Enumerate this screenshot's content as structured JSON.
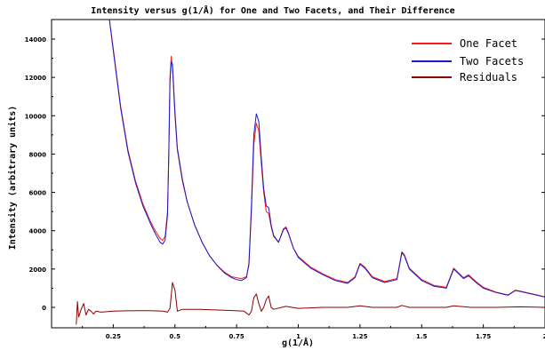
{
  "chart_data": {
    "type": "line",
    "title": "Intensity versus g(1/Å) for One and Two Facets, and Their Difference",
    "xlabel": "g(1/Å)",
    "ylabel": "Intensity (arbitrary units)",
    "xlim": [
      0,
      2
    ],
    "ylim": [
      -1000,
      15000
    ],
    "x_ticks": [
      0.25,
      0.5,
      0.75,
      1,
      1.25,
      1.5,
      1.75,
      2
    ],
    "x_tick_labels": [
      "0.25",
      "0.5",
      "0.75",
      "1",
      "1.25",
      "1.5",
      "1.75",
      "2"
    ],
    "y_ticks": [
      0,
      2000,
      4000,
      6000,
      8000,
      10000,
      12000,
      14000
    ],
    "y_tick_labels": [
      "0",
      "2000",
      "4000",
      "6000",
      "8000",
      "10000",
      "12000",
      "14000"
    ],
    "grid": false,
    "legend_position": "top-right",
    "series": [
      {
        "name": "One Facet",
        "color": "#ff1a1a",
        "points": [
          [
            0.23,
            15500
          ],
          [
            0.25,
            13500
          ],
          [
            0.28,
            10500
          ],
          [
            0.31,
            8200
          ],
          [
            0.34,
            6600
          ],
          [
            0.37,
            5400
          ],
          [
            0.4,
            4500
          ],
          [
            0.42,
            4000
          ],
          [
            0.44,
            3600
          ],
          [
            0.45,
            3500
          ],
          [
            0.46,
            3700
          ],
          [
            0.47,
            5000
          ],
          [
            0.475,
            8000
          ],
          [
            0.48,
            12000
          ],
          [
            0.485,
            13100
          ],
          [
            0.49,
            12500
          ],
          [
            0.5,
            10000
          ],
          [
            0.51,
            8200
          ],
          [
            0.53,
            6600
          ],
          [
            0.55,
            5500
          ],
          [
            0.58,
            4300
          ],
          [
            0.61,
            3400
          ],
          [
            0.64,
            2700
          ],
          [
            0.67,
            2200
          ],
          [
            0.7,
            1850
          ],
          [
            0.73,
            1600
          ],
          [
            0.75,
            1550
          ],
          [
            0.77,
            1500
          ],
          [
            0.79,
            1600
          ],
          [
            0.8,
            2200
          ],
          [
            0.81,
            5000
          ],
          [
            0.82,
            8500
          ],
          [
            0.83,
            9600
          ],
          [
            0.84,
            9200
          ],
          [
            0.85,
            7500
          ],
          [
            0.86,
            6000
          ],
          [
            0.87,
            5000
          ],
          [
            0.88,
            4900
          ],
          [
            0.89,
            4200
          ],
          [
            0.9,
            3700
          ],
          [
            0.92,
            3400
          ],
          [
            0.94,
            4100
          ],
          [
            0.95,
            4200
          ],
          [
            0.96,
            3900
          ],
          [
            0.98,
            3100
          ],
          [
            1.0,
            2650
          ],
          [
            1.05,
            2100
          ],
          [
            1.1,
            1750
          ],
          [
            1.15,
            1450
          ],
          [
            1.2,
            1300
          ],
          [
            1.23,
            1600
          ],
          [
            1.25,
            2300
          ],
          [
            1.27,
            2100
          ],
          [
            1.3,
            1600
          ],
          [
            1.35,
            1350
          ],
          [
            1.4,
            1500
          ],
          [
            1.42,
            2900
          ],
          [
            1.43,
            2750
          ],
          [
            1.45,
            2050
          ],
          [
            1.5,
            1450
          ],
          [
            1.55,
            1150
          ],
          [
            1.6,
            1050
          ],
          [
            1.63,
            2050
          ],
          [
            1.65,
            1800
          ],
          [
            1.67,
            1550
          ],
          [
            1.69,
            1700
          ],
          [
            1.72,
            1350
          ],
          [
            1.75,
            1050
          ],
          [
            1.8,
            800
          ],
          [
            1.85,
            650
          ],
          [
            1.88,
            900
          ],
          [
            1.9,
            850
          ],
          [
            1.95,
            700
          ],
          [
            2.0,
            550
          ]
        ]
      },
      {
        "name": "Two Facets",
        "color": "#1a1acc",
        "points": [
          [
            0.23,
            15500
          ],
          [
            0.25,
            13400
          ],
          [
            0.28,
            10400
          ],
          [
            0.31,
            8100
          ],
          [
            0.34,
            6500
          ],
          [
            0.37,
            5300
          ],
          [
            0.4,
            4400
          ],
          [
            0.42,
            3850
          ],
          [
            0.44,
            3400
          ],
          [
            0.45,
            3300
          ],
          [
            0.46,
            3500
          ],
          [
            0.47,
            4800
          ],
          [
            0.475,
            7800
          ],
          [
            0.48,
            11800
          ],
          [
            0.485,
            12800
          ],
          [
            0.49,
            12700
          ],
          [
            0.5,
            10200
          ],
          [
            0.51,
            8300
          ],
          [
            0.53,
            6700
          ],
          [
            0.55,
            5500
          ],
          [
            0.58,
            4300
          ],
          [
            0.61,
            3400
          ],
          [
            0.64,
            2700
          ],
          [
            0.67,
            2200
          ],
          [
            0.7,
            1800
          ],
          [
            0.73,
            1550
          ],
          [
            0.75,
            1450
          ],
          [
            0.77,
            1400
          ],
          [
            0.79,
            1550
          ],
          [
            0.8,
            2300
          ],
          [
            0.81,
            5300
          ],
          [
            0.82,
            9000
          ],
          [
            0.83,
            10100
          ],
          [
            0.84,
            9700
          ],
          [
            0.85,
            7800
          ],
          [
            0.86,
            6200
          ],
          [
            0.87,
            5300
          ],
          [
            0.88,
            5200
          ],
          [
            0.89,
            4300
          ],
          [
            0.9,
            3750
          ],
          [
            0.92,
            3400
          ],
          [
            0.94,
            4050
          ],
          [
            0.95,
            4150
          ],
          [
            0.96,
            3850
          ],
          [
            0.98,
            3100
          ],
          [
            1.0,
            2600
          ],
          [
            1.05,
            2050
          ],
          [
            1.1,
            1700
          ],
          [
            1.15,
            1400
          ],
          [
            1.2,
            1250
          ],
          [
            1.23,
            1550
          ],
          [
            1.25,
            2250
          ],
          [
            1.27,
            2050
          ],
          [
            1.3,
            1550
          ],
          [
            1.35,
            1300
          ],
          [
            1.4,
            1450
          ],
          [
            1.42,
            2850
          ],
          [
            1.43,
            2700
          ],
          [
            1.45,
            2000
          ],
          [
            1.5,
            1400
          ],
          [
            1.55,
            1100
          ],
          [
            1.6,
            1000
          ],
          [
            1.63,
            2000
          ],
          [
            1.65,
            1750
          ],
          [
            1.67,
            1500
          ],
          [
            1.69,
            1650
          ],
          [
            1.72,
            1300
          ],
          [
            1.75,
            1000
          ],
          [
            1.8,
            780
          ],
          [
            1.85,
            630
          ],
          [
            1.88,
            880
          ],
          [
            1.9,
            830
          ],
          [
            1.95,
            680
          ],
          [
            2.0,
            540
          ]
        ]
      },
      {
        "name": "Residuals",
        "color": "#8b0000",
        "points": [
          [
            0.1,
            -900
          ],
          [
            0.105,
            300
          ],
          [
            0.11,
            -500
          ],
          [
            0.12,
            -100
          ],
          [
            0.13,
            200
          ],
          [
            0.14,
            -400
          ],
          [
            0.15,
            -100
          ],
          [
            0.16,
            -200
          ],
          [
            0.17,
            -350
          ],
          [
            0.18,
            -200
          ],
          [
            0.2,
            -250
          ],
          [
            0.25,
            -200
          ],
          [
            0.3,
            -180
          ],
          [
            0.35,
            -170
          ],
          [
            0.4,
            -170
          ],
          [
            0.45,
            -200
          ],
          [
            0.47,
            -250
          ],
          [
            0.48,
            -50
          ],
          [
            0.49,
            1300
          ],
          [
            0.5,
            900
          ],
          [
            0.51,
            -200
          ],
          [
            0.53,
            -100
          ],
          [
            0.6,
            -100
          ],
          [
            0.7,
            -150
          ],
          [
            0.78,
            -200
          ],
          [
            0.8,
            -400
          ],
          [
            0.81,
            -200
          ],
          [
            0.82,
            500
          ],
          [
            0.83,
            700
          ],
          [
            0.84,
            200
          ],
          [
            0.85,
            -200
          ],
          [
            0.86,
            0
          ],
          [
            0.87,
            400
          ],
          [
            0.88,
            600
          ],
          [
            0.89,
            0
          ],
          [
            0.9,
            -100
          ],
          [
            0.95,
            50
          ],
          [
            1.0,
            -50
          ],
          [
            1.1,
            0
          ],
          [
            1.2,
            0
          ],
          [
            1.25,
            80
          ],
          [
            1.3,
            0
          ],
          [
            1.4,
            0
          ],
          [
            1.42,
            100
          ],
          [
            1.45,
            0
          ],
          [
            1.5,
            0
          ],
          [
            1.6,
            0
          ],
          [
            1.63,
            80
          ],
          [
            1.7,
            0
          ],
          [
            1.8,
            0
          ],
          [
            1.9,
            30
          ],
          [
            2.0,
            0
          ]
        ]
      }
    ]
  }
}
